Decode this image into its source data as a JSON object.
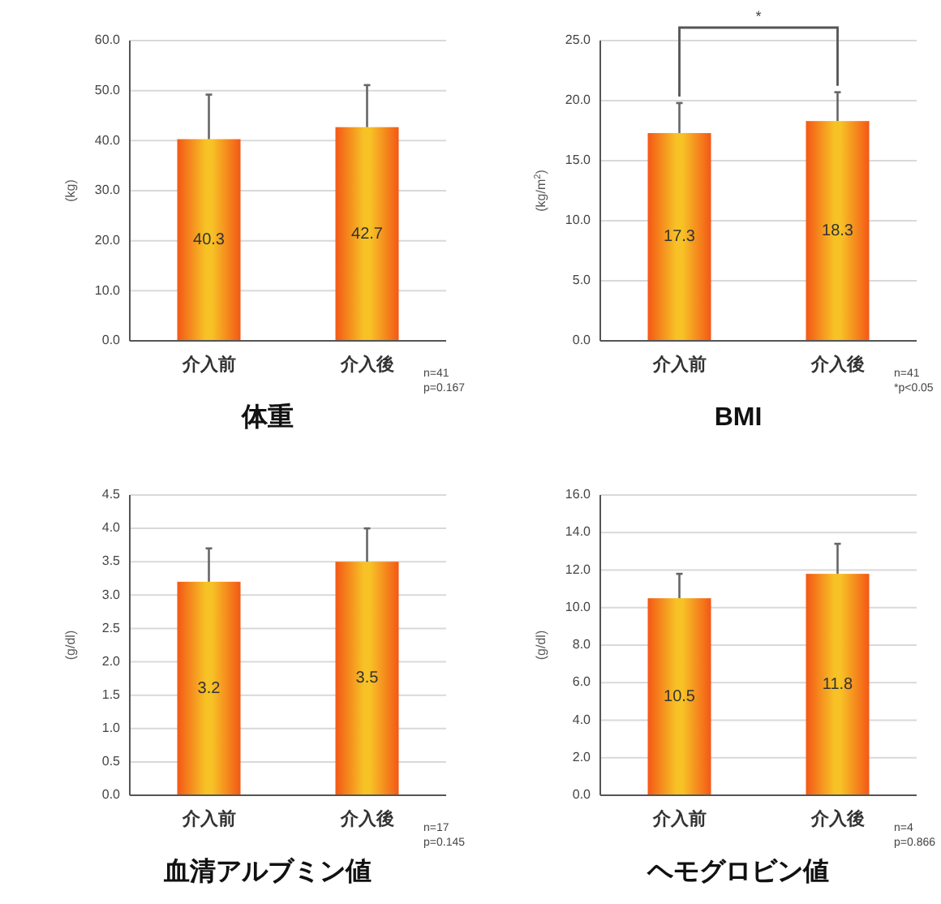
{
  "chart_data": [
    {
      "type": "bar",
      "title": "体重",
      "ylabel": "(kg)",
      "categories": [
        "介入前",
        "介入後"
      ],
      "values": [
        40.3,
        42.7
      ],
      "errors": [
        [
          40.3,
          49.2
        ],
        [
          42.7,
          51.1
        ]
      ],
      "color": "#f7941d",
      "ylim": [
        0,
        60
      ],
      "yticks": [
        {
          "value": 0,
          "label": "0.0"
        },
        {
          "value": 10,
          "label": "10.0"
        },
        {
          "value": 20,
          "label": "20.0"
        },
        {
          "value": 30,
          "label": "30.0"
        },
        {
          "value": 40,
          "label": "40.0"
        },
        {
          "value": 50,
          "label": "50.0"
        },
        {
          "value": 60,
          "label": "60.0"
        }
      ],
      "grid": "y",
      "data_labels": true,
      "annotations": [
        "n=41",
        "p=0.167"
      ]
    },
    {
      "type": "bar",
      "title": "BMI",
      "ylabel": "(kg/m$^{2}$)",
      "categories": [
        "介入前",
        "介入後"
      ],
      "values": [
        17.3,
        18.3
      ],
      "errors": [
        [
          17.3,
          19.8
        ],
        [
          18.3,
          20.7
        ]
      ],
      "color": "#f7941d",
      "ylim": [
        0,
        25
      ],
      "yticks": [
        {
          "value": 0,
          "label": "0.0"
        },
        {
          "value": 5,
          "label": "5.0"
        },
        {
          "value": 10,
          "label": "10.0"
        },
        {
          "value": 15,
          "label": "15.0"
        },
        {
          "value": 20,
          "label": "20.0"
        },
        {
          "value": 25,
          "label": "25.0"
        }
      ],
      "grid": "y",
      "data_labels": true,
      "annotations": [
        "*",
        "n=41",
        "*p<0.05"
      ]
    },
    {
      "type": "bar",
      "title": "血清アルブミン値",
      "ylabel": "(g/dl)",
      "categories": [
        "介入前",
        "介入後"
      ],
      "values": [
        3.2,
        3.5
      ],
      "errors": [
        [
          3.2,
          3.7
        ],
        [
          3.5,
          4.0
        ]
      ],
      "color": "#f7941d",
      "ylim": [
        0,
        4.5
      ],
      "yticks": [
        {
          "value": 0,
          "label": "0.0"
        },
        {
          "value": 0.5,
          "label": "0.5"
        },
        {
          "value": 1,
          "label": "1.0"
        },
        {
          "value": 1.5,
          "label": "1.5"
        },
        {
          "value": 2,
          "label": "2.0"
        },
        {
          "value": 2.5,
          "label": "2.5"
        },
        {
          "value": 3,
          "label": "3.0"
        },
        {
          "value": 3.5,
          "label": "3.5"
        },
        {
          "value": 4,
          "label": "4.0"
        },
        {
          "value": 4.5,
          "label": "4.5"
        }
      ],
      "grid": "y",
      "data_labels": true,
      "annotations": [
        "n=17",
        "p=0.145"
      ]
    },
    {
      "type": "bar",
      "title": "ヘモグロビン値",
      "ylabel": "(g/dl)",
      "categories": [
        "介入前",
        "介入後"
      ],
      "values": [
        10.5,
        11.8
      ],
      "errors": [
        [
          10.5,
          11.8
        ],
        [
          11.8,
          13.4
        ]
      ],
      "color": "#f7941d",
      "ylim": [
        0,
        16
      ],
      "yticks": [
        {
          "value": 0,
          "label": "0.0"
        },
        {
          "value": 2,
          "label": "2.0"
        },
        {
          "value": 4,
          "label": "4.0"
        },
        {
          "value": 6,
          "label": "6.0"
        },
        {
          "value": 8,
          "label": "8.0"
        },
        {
          "value": 10,
          "label": "10.0"
        },
        {
          "value": 12,
          "label": "12.0"
        },
        {
          "value": 14,
          "label": "14.0"
        },
        {
          "value": 16,
          "label": "16.0"
        }
      ],
      "grid": "y",
      "data_labels": true,
      "annotations": [
        "n=4",
        "p=0.866"
      ]
    }
  ]
}
